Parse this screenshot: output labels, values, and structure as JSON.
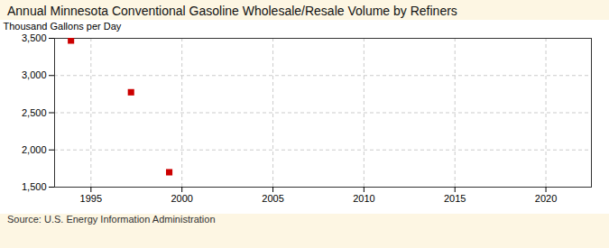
{
  "chart_data": {
    "type": "scatter",
    "title": "Annual Minnesota Conventional Gasoline Wholesale/Resale Volume by Refiners",
    "ylabel": "Thousand Gallons per Day",
    "annotation": "Source: U.S. Energy Information Administration",
    "x": [
      1993.9,
      1997.2,
      1999.3
    ],
    "values": [
      3470,
      2775,
      1700
    ],
    "color": "#cc0000",
    "marker": "square",
    "xlim": [
      1993.0,
      2022.5
    ],
    "ylim": [
      1500,
      3500
    ],
    "xticks": [
      1995,
      2000,
      2005,
      2010,
      2015,
      2020
    ],
    "yticks": [
      {
        "value": 1500,
        "label": "1,500"
      },
      {
        "value": 2000,
        "label": "2,000"
      },
      {
        "value": 2500,
        "label": "2,500"
      },
      {
        "value": 3000,
        "label": "3,000"
      },
      {
        "value": 3500,
        "label": "3,500"
      }
    ],
    "grid": true
  }
}
